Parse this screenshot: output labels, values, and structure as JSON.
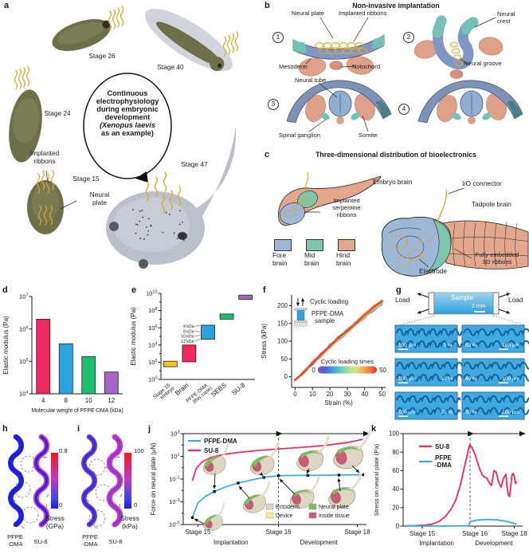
{
  "panels": {
    "a": {
      "label": "a",
      "stage26": "Stage 26",
      "stage40": "Stage 40",
      "stage24": "Stage 24",
      "stage15": "Stage 15",
      "stage47": "Stage 47",
      "center_lines": [
        "Continuous",
        "electrophysiology",
        "during embryonic",
        "development",
        "(Xenopus laevis",
        "as an example)"
      ],
      "implanted_ribbons": [
        "Implanted",
        "ribbons"
      ],
      "neural_plate": [
        "Neural",
        "plate"
      ]
    },
    "b": {
      "label": "b",
      "title": "Non-invasive implantation",
      "steps": [
        "1",
        "2",
        "3",
        "4"
      ],
      "neural_plate": "Neural plate",
      "implanted_ribbons": "Implanted ribbons",
      "mesoderm": "Mesoderm",
      "notochord": "Notochord",
      "neural_crest": [
        "Neural",
        "crest"
      ],
      "neural_groove": "Neural groove",
      "neural_tube": "Neural tube",
      "spinal_ganglion": "Spinal ganglion",
      "somite": "Somite"
    },
    "c": {
      "label": "c",
      "title": "Three-dimensional distribution of bioelectronics",
      "embryo_brain": "Embryo brain",
      "io_connector": "I/O connector",
      "tadpole_brain": "Tadpole brain",
      "implanted_serpentine_ribbons": [
        "Implanted",
        "serpentine",
        "ribbons"
      ],
      "electrode": "Electrode",
      "fully_embedded": [
        "Fully-embedded",
        "3D ribbons"
      ],
      "legend": [
        {
          "lines": [
            "Fore",
            "brain"
          ],
          "color": "#9cb8d6"
        },
        {
          "lines": [
            "Mid",
            "brain"
          ],
          "color": "#7cc5ae"
        },
        {
          "lines": [
            "Hind",
            "brain"
          ],
          "color": "#e2a78c"
        }
      ]
    },
    "g": {
      "label": "g",
      "load_left": "Load",
      "load_right": "Load",
      "sample": "Sample",
      "scale": "2 mm",
      "tiles": [
        {
          "texts": [
            "100 μm",
            "0 %"
          ],
          "scalebar": "left"
        },
        {
          "texts": [
            "50 %",
            "100 μm"
          ],
          "scalebar": "right"
        },
        {
          "texts": [
            "100 μm",
            "10 %"
          ],
          "scalebar": "left"
        },
        {
          "texts": [
            "40 %",
            "100 μm"
          ],
          "scalebar": "right"
        },
        {
          "texts": [
            "100 μm",
            "20 %"
          ],
          "scalebar": "left"
        },
        {
          "texts": [
            "30 %",
            "100 μm"
          ],
          "scalebar": "right"
        }
      ]
    },
    "h": {
      "label": "h",
      "materials": [
        [
          "PFPE",
          "-DMA"
        ],
        [
          "SU-8"
        ]
      ],
      "colorbar_max": "0.8",
      "colorbar_min": "0",
      "colorbar_title": [
        "Stress",
        "(GPa)"
      ]
    },
    "i": {
      "label": "i",
      "materials": [
        [
          "PFPE",
          "-DMA"
        ],
        [
          "SU-8"
        ]
      ],
      "colorbar_max": "100",
      "colorbar_min": "0",
      "colorbar_title": [
        "Stress",
        "(kPa)"
      ]
    }
  },
  "chart_data": [
    {
      "id": "d",
      "panel_label": "d",
      "type": "bar",
      "xlabel": "Molecular weight of PFPE-DMA (kDa)",
      "ylabel": "Elastic modulus (Pa)",
      "log_y": true,
      "ylim": [
        10000,
        10000000
      ],
      "ytick_exponents": [
        4,
        5,
        6,
        7
      ],
      "categories": [
        "4",
        "8",
        "10",
        "12"
      ],
      "values": [
        2000000,
        350000,
        140000,
        47000
      ],
      "colors": [
        "#ee2a5e",
        "#2aa2dd",
        "#1fbe6e",
        "#a565c6"
      ]
    },
    {
      "id": "e",
      "panel_label": "e",
      "type": "rangebar",
      "ylabel": "Elastic modulus (Pa)",
      "log_y": true,
      "ylim": [
        1,
        10000000000
      ],
      "ytick_exponents": [
        0,
        2,
        4,
        6,
        8,
        10
      ],
      "categories": [
        [
          "Stage 15",
          "embryo"
        ],
        [
          "Brain"
        ],
        [
          "PFPE-DMA",
          "(this case)"
        ],
        [
          "SEBS"
        ],
        [
          "SU-8"
        ]
      ],
      "ranges": [
        [
          30,
          130
        ],
        [
          110,
          10000
        ],
        [
          47000,
          2000000
        ],
        [
          10000000,
          40000000
        ],
        [
          2000000000,
          6300000000
        ]
      ],
      "colors": [
        "#f6c61a",
        "#ee2a5e",
        "#2aa2dd",
        "#1fbe6e",
        "#a565c6"
      ],
      "annotations": [
        {
          "label": "4 kDa",
          "value": 2000000
        },
        {
          "label": "8 kDa",
          "value": 350000
        },
        {
          "label": "10 kDa",
          "value": 140000
        },
        {
          "label": "12 kDa",
          "value": 47000
        }
      ]
    },
    {
      "id": "f",
      "panel_label": "f",
      "type": "line-cyclic",
      "xlabel": "Strain (%)",
      "ylabel": "Stress (kPa)",
      "xlim": [
        -2,
        52
      ],
      "ylim": [
        -30,
        230
      ],
      "xticks": [
        0,
        10,
        20,
        30,
        40,
        50
      ],
      "yticks": [
        0,
        50,
        100,
        150,
        200
      ],
      "base_x": [
        0,
        5,
        10,
        15,
        20,
        25,
        30,
        35,
        40,
        45,
        50
      ],
      "base_y": [
        -10,
        12,
        38,
        62,
        86,
        108,
        128,
        150,
        172,
        193,
        210
      ],
      "n_curves": 50,
      "colormap": [
        "#7d4fc8",
        "#4a64d8",
        "#3f9be0",
        "#62c6c2",
        "#9fdca0",
        "#d9e37e",
        "#f0bc5a",
        "#ee7a40",
        "#e03428"
      ],
      "colorbar_title": "Cyclic loading times",
      "colorbar_min": "0",
      "colorbar_max": "50",
      "inset_loading": "Cyclic loading",
      "inset_sample": [
        "PFPE-DMA",
        "sample"
      ]
    },
    {
      "id": "j",
      "panel_label": "j",
      "type": "line-log",
      "ylabel": "Force on neural plate (μN)",
      "ylim": [
        1e-05,
        1000
      ],
      "ytick_exponents": [
        -5,
        -3,
        -1,
        1,
        3
      ],
      "xtick_labels": [
        "Stage 15",
        "Stage 16",
        "Stage 18"
      ],
      "xtick_pos": [
        0.08,
        0.52,
        0.95
      ],
      "phase_labels": [
        "Implantation",
        "Development"
      ],
      "dashed_x": 0.52,
      "series": [
        {
          "name": "PFPE-DMA",
          "color": "#39a8de",
          "x": [
            0.05,
            0.08,
            0.12,
            0.17,
            0.23,
            0.3,
            0.38,
            0.45,
            0.52,
            0.6,
            0.7,
            0.8,
            0.9,
            0.98
          ],
          "y": [
            4e-05,
            0.0008,
            0.003,
            0.008,
            0.02,
            0.045,
            0.09,
            0.15,
            0.2,
            0.21,
            0.21,
            0.22,
            0.23,
            0.24
          ]
        },
        {
          "name": "SU-8",
          "color": "#f2255c",
          "x": [
            0.05,
            0.07,
            0.1,
            0.15,
            0.22,
            0.3,
            0.4,
            0.52,
            0.65,
            0.78,
            0.9,
            0.98
          ],
          "y": [
            0.07,
            0.8,
            3,
            8,
            15,
            22,
            32,
            45,
            62,
            95,
            170,
            320
          ]
        }
      ],
      "marker_x": [
        0.05,
        0.17,
        0.3,
        0.44,
        0.52,
        0.68,
        0.85,
        0.98
      ],
      "tissue_legend": [
        {
          "label": "Ectoderm",
          "color": "#d9d3c0"
        },
        {
          "label": "Device",
          "color": "#f8f07a"
        },
        {
          "label": "Neural plate",
          "color": "#80ba68"
        },
        {
          "label": "Inside tissue",
          "color": "#c75d72"
        }
      ]
    },
    {
      "id": "k",
      "panel_label": "k",
      "type": "line-linear",
      "ylabel": "Stress on neural plate (Pa)",
      "ylim": [
        0,
        100
      ],
      "yticks": [
        0,
        20,
        40,
        60,
        80,
        100
      ],
      "xtick_labels": [
        "Stage 15",
        "Stage 16",
        "Stage 18"
      ],
      "xtick_pos": [
        0.16,
        0.6,
        0.93
      ],
      "phase_labels": [
        "Implantation",
        "Development"
      ],
      "dashed_x": 0.56,
      "series": [
        {
          "name": "SU-8",
          "legend_lines": [
            "SU-8"
          ],
          "color": "#f2255c",
          "x": [
            0.02,
            0.1,
            0.18,
            0.24,
            0.3,
            0.35,
            0.4,
            0.44,
            0.48,
            0.52,
            0.55,
            0.56,
            0.58,
            0.6,
            0.62,
            0.64,
            0.66,
            0.68,
            0.7,
            0.72,
            0.74,
            0.75,
            0.76,
            0.78,
            0.8,
            0.82,
            0.84,
            0.86,
            0.87,
            0.88,
            0.89,
            0.9,
            0.91,
            0.92,
            0.93,
            0.94,
            0.95
          ],
          "y": [
            0.3,
            0.5,
            1,
            2,
            5,
            10,
            18,
            28,
            45,
            68,
            85,
            88,
            84,
            78,
            70,
            62,
            56,
            53,
            52,
            47,
            44,
            52,
            60,
            58,
            47,
            42,
            52,
            56,
            42,
            34,
            32,
            42,
            55,
            57,
            54,
            46,
            48
          ]
        },
        {
          "name": "PFPE-DMA",
          "legend_lines": [
            "PFPE",
            "-DMA"
          ],
          "color": "#39a8de",
          "x": [
            0.02,
            0.3,
            0.5,
            0.55,
            0.56,
            0.62,
            0.7,
            0.78,
            0.85,
            0.9,
            0.95
          ],
          "y": [
            0.2,
            0.2,
            0.3,
            0.5,
            5,
            6.5,
            7.2,
            6.8,
            5.5,
            4,
            2.2
          ]
        }
      ]
    }
  ]
}
